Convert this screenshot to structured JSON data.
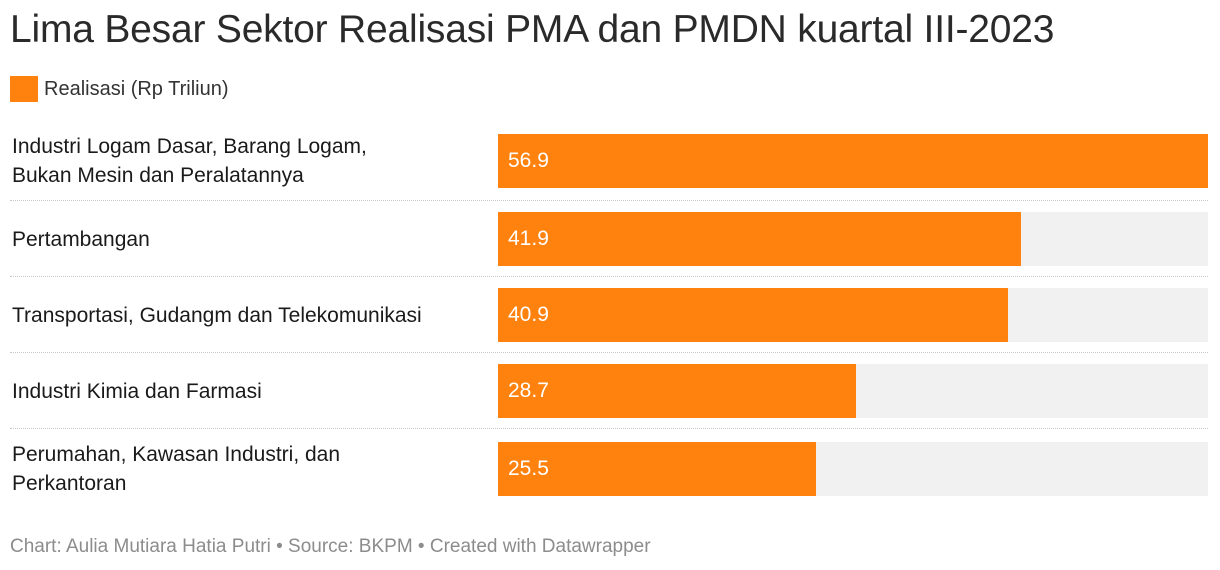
{
  "title": "Lima Besar Sektor Realisasi PMA dan PMDN kuartal III-2023",
  "legend": {
    "label": "Realisasi (Rp Triliun)",
    "color": "#ff820f"
  },
  "footer": "Chart: Aulia Mutiara Hatia Putri • Source: BKPM • Created with Datawrapper",
  "chart_data": {
    "type": "bar",
    "orientation": "horizontal",
    "categories": [
      "Industri Logam Dasar, Barang Logam, Bukan Mesin dan Peralatannya",
      "Pertambangan",
      "Transportasi, Gudangm dan Telekomunikasi",
      "Industri Kimia dan Farmasi",
      "Perumahan, Kawasan Industri, dan Perkantoran"
    ],
    "category_lines": [
      [
        "Industri Logam Dasar, Barang Logam,",
        "Bukan Mesin dan Peralatannya"
      ],
      [
        "Pertambangan"
      ],
      [
        "Transportasi, Gudangm dan Telekomunikasi"
      ],
      [
        "Industri Kimia dan Farmasi"
      ],
      [
        "Perumahan, Kawasan Industri, dan",
        "Perkantoran"
      ]
    ],
    "series": [
      {
        "name": "Realisasi (Rp Triliun)",
        "values": [
          56.9,
          41.9,
          40.9,
          28.7,
          25.5
        ],
        "color": "#ff820f"
      }
    ],
    "value_labels": [
      "56.9",
      "41.9",
      "40.9",
      "28.7",
      "25.5"
    ],
    "xlim": [
      0,
      56.9
    ],
    "background_bar_color": "#f1f1f1",
    "grid": false,
    "legend_position": "top-left"
  }
}
